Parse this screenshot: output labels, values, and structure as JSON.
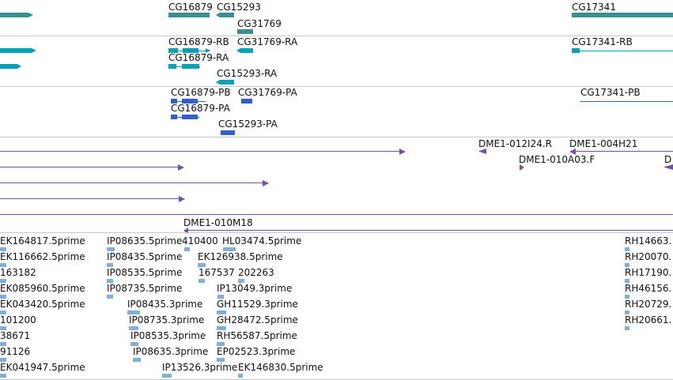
{
  "colors": {
    "gene": "#3a9090",
    "transcript": "#0aa0b8",
    "protein": "#3060c8",
    "clone": "#7050a8",
    "est": "#80b0d8"
  },
  "gene_track": {
    "labels": [
      "CG16879",
      "CG15293",
      "CG31769",
      "CG17341"
    ]
  },
  "transcript_track": {
    "labels": [
      "CG16879-RB",
      "CG31769-RA",
      "CG16879-RA",
      "CG15293-RA",
      "CG17341-RB"
    ]
  },
  "protein_track": {
    "labels": [
      "CG16879-PB",
      "CG31769-PA",
      "CG16879-PA",
      "CG15293-PA",
      "CG17341-PB"
    ]
  },
  "clone_track": {
    "labels": [
      "DME1-012I24.R",
      "DME1-004H21",
      "DME1-010A03.F",
      "D",
      "DME1-010M18"
    ]
  },
  "est_track": {
    "labels": [
      "EK164817.5prime",
      "IP08635.5prime",
      "410400",
      "HL03474.5prime",
      "RH14663.",
      "EK116662.5prime",
      "IP08435.5prime",
      "EK126938.5prime",
      "RH20070.",
      "163182",
      "IP08535.5prime",
      "167537",
      "202263",
      "RH17190.",
      "EK085960.5prime",
      "IP08735.5prime",
      "IP13049.3prime",
      "RH46156.",
      "EK043420.5prime",
      "IP08435.3prime",
      "GH11529.3prime",
      "RH20729.",
      "101200",
      "IP08735.3prime",
      "GH28472.5prime",
      "RH20661.",
      "38671",
      "IP08535.3prime",
      "RH56587.5prime",
      "91126",
      "IP08635.3prime",
      "EP02523.3prime",
      "EK041947.5prime",
      "IP13526.3prime",
      "EK146830.5prime"
    ]
  }
}
